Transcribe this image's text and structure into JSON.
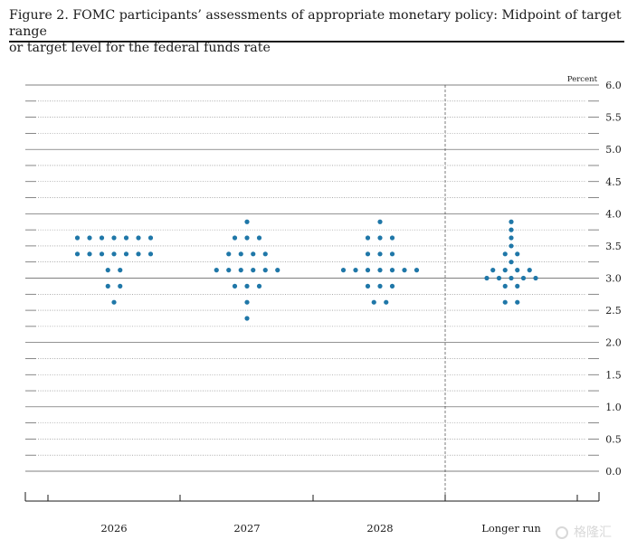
{
  "figure": {
    "title_line1": "Figure 2. FOMC participants’ assessments of appropriate monetary policy: Midpoint of target range",
    "title_line2": "or target level for the federal funds rate"
  },
  "watermark": {
    "text": "格隆汇"
  },
  "chart_data": {
    "type": "scatter",
    "title": "",
    "xlabel": "",
    "ylabel": "Percent",
    "ylim": [
      0,
      6
    ],
    "y_ticks": [
      0.0,
      0.5,
      1.0,
      1.5,
      2.0,
      2.5,
      3.0,
      3.5,
      4.0,
      4.5,
      5.0,
      5.5,
      6.0
    ],
    "y_tick_labels": [
      "0.0",
      "0.5",
      "1.0",
      "1.5",
      "2.0",
      "2.5",
      "3.0",
      "3.5",
      "4.0",
      "4.5",
      "5.0",
      "5.5",
      "6.0"
    ],
    "minor_tick_step": 0.25,
    "categories": [
      "2026",
      "2027",
      "2028",
      "Longer run"
    ],
    "grid": true,
    "legend": "none",
    "dot_color": "#1f77a8",
    "series": [
      {
        "category": "2026",
        "points": [
          {
            "y": 3.625,
            "count": 7
          },
          {
            "y": 3.375,
            "count": 7
          },
          {
            "y": 3.125,
            "count": 2
          },
          {
            "y": 2.875,
            "count": 2
          },
          {
            "y": 2.625,
            "count": 1
          }
        ]
      },
      {
        "category": "2027",
        "points": [
          {
            "y": 3.875,
            "count": 1
          },
          {
            "y": 3.625,
            "count": 3
          },
          {
            "y": 3.375,
            "count": 4
          },
          {
            "y": 3.125,
            "count": 6
          },
          {
            "y": 2.875,
            "count": 3
          },
          {
            "y": 2.625,
            "count": 1
          },
          {
            "y": 2.375,
            "count": 1
          }
        ]
      },
      {
        "category": "2028",
        "points": [
          {
            "y": 3.875,
            "count": 1
          },
          {
            "y": 3.625,
            "count": 3
          },
          {
            "y": 3.375,
            "count": 3
          },
          {
            "y": 3.125,
            "count": 7
          },
          {
            "y": 2.875,
            "count": 3
          },
          {
            "y": 2.625,
            "count": 2
          }
        ]
      },
      {
        "category": "Longer run",
        "points": [
          {
            "y": 3.875,
            "count": 1
          },
          {
            "y": 3.75,
            "count": 1
          },
          {
            "y": 3.625,
            "count": 1
          },
          {
            "y": 3.5,
            "count": 1
          },
          {
            "y": 3.375,
            "count": 2
          },
          {
            "y": 3.25,
            "count": 1
          },
          {
            "y": 3.125,
            "count": 4
          },
          {
            "y": 3.0,
            "count": 5
          },
          {
            "y": 2.875,
            "count": 2
          },
          {
            "y": 2.625,
            "count": 2
          }
        ]
      }
    ]
  }
}
